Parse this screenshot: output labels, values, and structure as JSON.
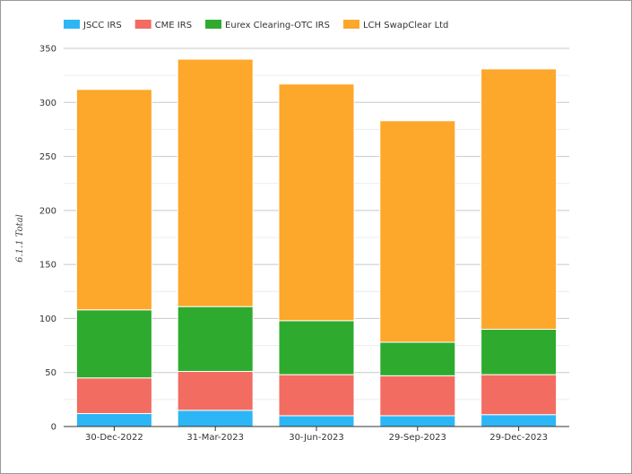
{
  "chart_data": {
    "type": "bar",
    "stacked": true,
    "categories": [
      "30-Dec-2022",
      "31-Mar-2023",
      "30-Jun-2023",
      "29-Sep-2023",
      "29-Dec-2023"
    ],
    "series": [
      {
        "name": "JSCC IRS",
        "color": "#2db6f5",
        "values": [
          12,
          15,
          10,
          10,
          11
        ]
      },
      {
        "name": "CME IRS",
        "color": "#f26c61",
        "values": [
          33,
          36,
          38,
          37,
          37
        ]
      },
      {
        "name": "Eurex Clearing-OTC IRS",
        "color": "#2eab2e",
        "values": [
          63,
          60,
          50,
          31,
          42
        ]
      },
      {
        "name": "LCH SwapClear Ltd",
        "color": "#fda72b",
        "values": [
          204,
          229,
          219,
          205,
          241
        ]
      }
    ],
    "title": "",
    "xlabel": "",
    "ylabel": "6.1.1 Total",
    "ylim": [
      0,
      350
    ],
    "yticks": [
      0,
      50,
      100,
      150,
      200,
      250,
      300,
      350
    ],
    "grid": true,
    "legend_position": "top-left"
  }
}
